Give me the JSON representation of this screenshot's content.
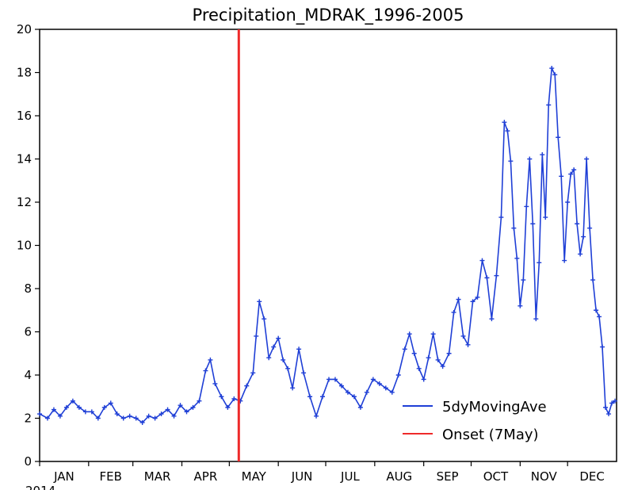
{
  "chart_data": {
    "type": "line",
    "title": "Precipitation_MDRAK_1996-2005",
    "xlabel": "",
    "ylabel": "",
    "ylim": [
      0,
      20
    ],
    "yticks": [
      "0",
      "2",
      "4",
      "6",
      "8",
      "10",
      "12",
      "14",
      "16",
      "18",
      "20"
    ],
    "year_label": "2014",
    "months": [
      "JAN",
      "FEB",
      "MAR",
      "APR",
      "MAY",
      "JUN",
      "JUL",
      "AUG",
      "SEP",
      "OCT",
      "NOV",
      "DEC"
    ],
    "grid": false,
    "legend_position": "bottom-right",
    "series": [
      {
        "name": "5dyMovingAve",
        "color": "#1f3fd6",
        "marker": "plus",
        "points": [
          [
            1,
            2.2
          ],
          [
            6,
            2.0
          ],
          [
            10,
            2.4
          ],
          [
            14,
            2.1
          ],
          [
            18,
            2.5
          ],
          [
            22,
            2.8
          ],
          [
            26,
            2.5
          ],
          [
            30,
            2.3
          ],
          [
            34,
            2.3
          ],
          [
            38,
            2.0
          ],
          [
            42,
            2.5
          ],
          [
            46,
            2.7
          ],
          [
            50,
            2.2
          ],
          [
            54,
            2.0
          ],
          [
            58,
            2.1
          ],
          [
            62,
            2.0
          ],
          [
            66,
            1.8
          ],
          [
            70,
            2.1
          ],
          [
            74,
            2.0
          ],
          [
            78,
            2.2
          ],
          [
            82,
            2.4
          ],
          [
            86,
            2.1
          ],
          [
            90,
            2.6
          ],
          [
            94,
            2.3
          ],
          [
            98,
            2.5
          ],
          [
            102,
            2.8
          ],
          [
            106,
            4.2
          ],
          [
            109,
            4.7
          ],
          [
            112,
            3.6
          ],
          [
            116,
            3.0
          ],
          [
            120,
            2.5
          ],
          [
            124,
            2.9
          ],
          [
            128,
            2.8
          ],
          [
            132,
            3.5
          ],
          [
            136,
            4.1
          ],
          [
            138,
            5.8
          ],
          [
            140,
            7.4
          ],
          [
            143,
            6.6
          ],
          [
            146,
            4.8
          ],
          [
            149,
            5.3
          ],
          [
            152,
            5.7
          ],
          [
            155,
            4.7
          ],
          [
            158,
            4.3
          ],
          [
            161,
            3.4
          ],
          [
            165,
            5.2
          ],
          [
            168,
            4.1
          ],
          [
            172,
            3.0
          ],
          [
            176,
            2.1
          ],
          [
            180,
            3.0
          ],
          [
            184,
            3.8
          ],
          [
            188,
            3.8
          ],
          [
            192,
            3.5
          ],
          [
            196,
            3.2
          ],
          [
            200,
            3.0
          ],
          [
            204,
            2.5
          ],
          [
            208,
            3.2
          ],
          [
            212,
            3.8
          ],
          [
            216,
            3.6
          ],
          [
            220,
            3.4
          ],
          [
            224,
            3.2
          ],
          [
            228,
            4.0
          ],
          [
            232,
            5.2
          ],
          [
            235,
            5.9
          ],
          [
            238,
            5.0
          ],
          [
            241,
            4.3
          ],
          [
            244,
            3.8
          ],
          [
            247,
            4.8
          ],
          [
            250,
            5.9
          ],
          [
            253,
            4.7
          ],
          [
            256,
            4.4
          ],
          [
            260,
            5.0
          ],
          [
            263,
            6.9
          ],
          [
            266,
            7.5
          ],
          [
            269,
            5.8
          ],
          [
            272,
            5.4
          ],
          [
            275,
            7.4
          ],
          [
            278,
            7.6
          ],
          [
            281,
            9.3
          ],
          [
            284,
            8.5
          ],
          [
            287,
            6.6
          ],
          [
            290,
            8.6
          ],
          [
            293,
            11.3
          ],
          [
            295,
            15.7
          ],
          [
            297,
            15.3
          ],
          [
            299,
            13.9
          ],
          [
            301,
            10.8
          ],
          [
            303,
            9.4
          ],
          [
            305,
            7.2
          ],
          [
            307,
            8.4
          ],
          [
            309,
            11.8
          ],
          [
            311,
            14.0
          ],
          [
            313,
            11.0
          ],
          [
            315,
            6.6
          ],
          [
            317,
            9.2
          ],
          [
            319,
            14.2
          ],
          [
            321,
            11.3
          ],
          [
            323,
            16.5
          ],
          [
            325,
            18.2
          ],
          [
            327,
            17.9
          ],
          [
            329,
            15.0
          ],
          [
            331,
            13.2
          ],
          [
            333,
            9.3
          ],
          [
            335,
            12.0
          ],
          [
            337,
            13.3
          ],
          [
            339,
            13.5
          ],
          [
            341,
            11.0
          ],
          [
            343,
            9.6
          ],
          [
            345,
            10.4
          ],
          [
            347,
            14.0
          ],
          [
            349,
            10.8
          ],
          [
            351,
            8.4
          ],
          [
            353,
            7.0
          ],
          [
            355,
            6.7
          ],
          [
            357,
            5.3
          ],
          [
            359,
            2.5
          ],
          [
            361,
            2.2
          ],
          [
            363,
            2.7
          ],
          [
            365,
            2.8
          ]
        ]
      },
      {
        "name": "Onset (7May)",
        "color": "#ee2a2a",
        "marker": "none",
        "x_day": 127
      }
    ]
  }
}
